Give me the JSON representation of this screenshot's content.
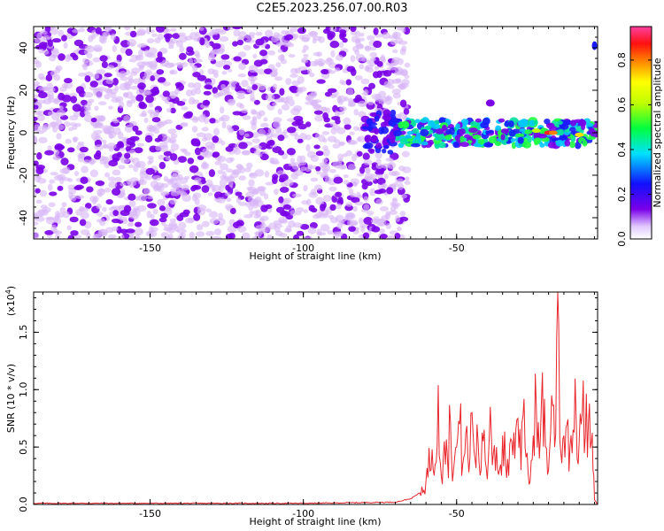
{
  "title": "C2E5.2023.256.07.00.R03",
  "colors": {
    "snr_line": "#e8262c",
    "noise_dots": "#7a00e8",
    "noise_light": "#d7b4f6"
  },
  "chart_data": [
    {
      "type": "heatmap",
      "xlabel": "Height of straight line (km)",
      "ylabel": "Frequency (Hz)",
      "xlim": [
        -188,
        -4
      ],
      "ylim": [
        -50,
        50
      ],
      "x_ticks": [
        -150,
        -100,
        -50
      ],
      "x_tick_labels": [
        "-150",
        "-100",
        "-50"
      ],
      "y_ticks": [
        -40,
        -20,
        0,
        20,
        40
      ],
      "y_tick_labels": [
        "-40",
        "-20",
        "0",
        "20",
        "40"
      ],
      "colorbar": {
        "label": "Normalized spectral amplitude",
        "range": [
          0.0,
          0.95
        ],
        "ticks": [
          0.0,
          0.2,
          0.4,
          0.6,
          0.8
        ],
        "tick_labels": [
          "0.0",
          "0.2",
          "0.4",
          "0.6",
          "0.8"
        ],
        "colormap": "rainbow"
      },
      "noise_region_x": [
        -188,
        -70
      ],
      "signal_band": {
        "x": [
          -80,
          -4
        ],
        "freq_center": 0,
        "freq_halfwidth": 6
      }
    },
    {
      "type": "line",
      "xlabel": "Height of straight line (km)",
      "ylabel": "SNR (10 * v/v)",
      "y_multiplier": "(x10",
      "y_multiplier_exp": "4",
      "xlim": [
        -188,
        -4
      ],
      "ylim": [
        0,
        1.85
      ],
      "x_ticks": [
        -150,
        -100,
        -50
      ],
      "x_tick_labels": [
        "-150",
        "-100",
        "-50"
      ],
      "y_ticks": [
        0.0,
        0.5,
        1.0,
        1.5
      ],
      "y_tick_labels": [
        "0.0",
        "0.5",
        "1.0",
        "1.5"
      ],
      "series": [
        {
          "x": [
            -188,
            -150,
            -100,
            -70,
            -65,
            -62,
            -60,
            -58,
            -57,
            -56,
            -55,
            -54,
            -53,
            -52,
            -51,
            -50,
            -49,
            -48,
            -47,
            -46,
            -45,
            -44,
            -43,
            -42,
            -41,
            -40,
            -39,
            -38,
            -37,
            -36,
            -35,
            -34,
            -33,
            -32,
            -31,
            -30,
            -29,
            -28,
            -27,
            -26,
            -25,
            -24,
            -23,
            -22,
            -21,
            -20,
            -19,
            -18,
            -17,
            -16,
            -15,
            -14,
            -13,
            -12,
            -11,
            -10,
            -9,
            -8,
            -7,
            -6,
            -5.5,
            -5,
            -4.5,
            -4
          ],
          "values": [
            0.01,
            0.01,
            0.01,
            0.02,
            0.05,
            0.1,
            0.2,
            0.48,
            0.35,
            1.04,
            0.25,
            0.55,
            0.4,
            0.72,
            0.3,
            0.5,
            0.7,
            0.35,
            0.62,
            0.28,
            0.8,
            0.4,
            0.55,
            0.3,
            0.65,
            0.22,
            0.85,
            0.45,
            0.5,
            0.3,
            0.6,
            0.35,
            0.25,
            0.55,
            0.4,
            0.75,
            0.3,
            0.92,
            0.45,
            0.2,
            0.6,
            0.85,
            0.4,
            1.15,
            0.5,
            0.3,
            0.95,
            0.5,
            1.85,
            0.45,
            0.6,
            0.7,
            0.5,
            0.65,
            0.75,
            0.55,
            0.8,
            0.6,
            0.7,
            0.55,
            0.3,
            0.04,
            0.02,
            0.01
          ]
        }
      ]
    }
  ]
}
